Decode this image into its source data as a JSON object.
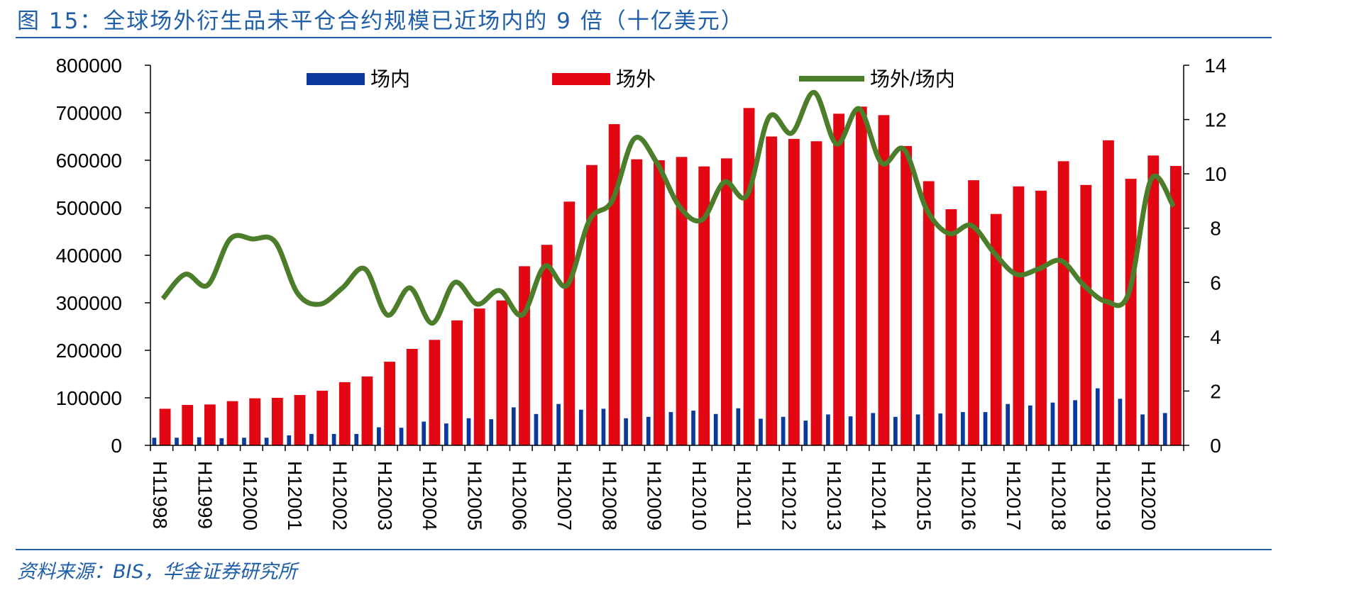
{
  "title": "图 15：全球场外衍生品未平仓合约规模已近场内的 9 倍（十亿美元）",
  "source": "资料来源：BIS，华金证券研究所",
  "colors": {
    "inside": "#0b3a9c",
    "outside": "#e30613",
    "ratio": "#4c7d2a",
    "accent": "#1f5fa8"
  },
  "chart_data": {
    "type": "bar",
    "x_tick_labels": [
      "H11998",
      "H11999",
      "H12000",
      "H12001",
      "H12002",
      "H12003",
      "H12004",
      "H12005",
      "H12006",
      "H12007",
      "H12008",
      "H12009",
      "H12010",
      "H12011",
      "H12012",
      "H12013",
      "H12014",
      "H12015",
      "H12016",
      "H12017",
      "H12018",
      "H12019",
      "H12020"
    ],
    "left_axis": {
      "ticks": [
        "0",
        "100000",
        "200000",
        "300000",
        "400000",
        "500000",
        "600000",
        "700000",
        "800000"
      ],
      "ylim": [
        0,
        800000
      ]
    },
    "right_axis": {
      "ticks": [
        "0",
        "2",
        "4",
        "6",
        "8",
        "10",
        "12",
        "14"
      ],
      "ylim": [
        0,
        14
      ]
    },
    "legend": [
      "场内",
      "场外",
      "场外/场内"
    ],
    "legend_position": "top",
    "series": [
      {
        "name": "场内",
        "type": "bar",
        "axis": "left",
        "values": [
          16000,
          16000,
          17000,
          15000,
          16000,
          16000,
          21000,
          24000,
          24000,
          24000,
          38000,
          37000,
          50000,
          46000,
          57000,
          55000,
          80000,
          66000,
          87000,
          75000,
          77000,
          57000,
          60000,
          70000,
          73000,
          66000,
          78000,
          56000,
          60000,
          52000,
          65000,
          61000,
          68000,
          60000,
          65000,
          67000,
          70000,
          70000,
          87000,
          84000,
          90000,
          95000,
          120000,
          98000,
          65000,
          68000
        ]
      },
      {
        "name": "场外",
        "type": "bar",
        "axis": "left",
        "values": [
          77000,
          85000,
          86000,
          93000,
          99000,
          100000,
          106000,
          115000,
          133000,
          145000,
          176000,
          203000,
          222000,
          263000,
          288000,
          305000,
          377000,
          422000,
          513000,
          590000,
          676000,
          602000,
          600000,
          607000,
          587000,
          604000,
          710000,
          650000,
          645000,
          640000,
          698000,
          713000,
          695000,
          630000,
          556000,
          497000,
          558000,
          487000,
          545000,
          536000,
          598000,
          548000,
          642000,
          561000,
          610000,
          588000
        ]
      },
      {
        "name": "场外/场内",
        "type": "line",
        "axis": "right",
        "values": [
          5.4,
          6.3,
          5.9,
          7.6,
          7.6,
          7.5,
          5.6,
          5.2,
          5.8,
          6.5,
          4.8,
          5.8,
          4.5,
          6.0,
          5.2,
          5.7,
          4.8,
          6.6,
          5.9,
          8.3,
          9.0,
          11.3,
          10.4,
          8.8,
          8.3,
          9.7,
          9.2,
          12.1,
          11.5,
          13.0,
          11.1,
          12.4,
          10.4,
          10.9,
          8.7,
          7.8,
          8.1,
          7.1,
          6.3,
          6.5,
          6.8,
          5.9,
          5.3,
          5.6,
          9.8,
          8.8
        ]
      }
    ],
    "grid": false
  }
}
